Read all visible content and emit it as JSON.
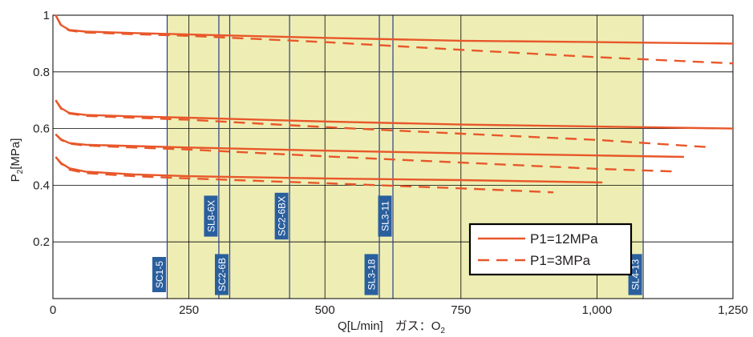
{
  "chart_data": {
    "type": "line",
    "xlabel_main": "Q[L/min]　ガス：O",
    "xlabel_sub": "2",
    "ylabel_main": "P",
    "ylabel_sub": "2",
    "ylabel_unit": "[MPa]",
    "xlim": [
      0,
      1250
    ],
    "ylim": [
      0,
      1.0
    ],
    "x_ticks": [
      0,
      250,
      500,
      750,
      1000,
      1250
    ],
    "x_tick_labels": [
      "0",
      "250",
      "500",
      "750",
      "1,000",
      "1,250"
    ],
    "y_ticks": [
      0.2,
      0.4,
      0.6,
      0.8,
      1.0
    ],
    "y_tick_labels": [
      "0.2",
      "0.4",
      "0.6",
      "0.8",
      "1"
    ],
    "grid": true,
    "shaded_region": {
      "x_start": 210,
      "x_end": 1085,
      "color": "#eeeeb4"
    },
    "regulators": [
      {
        "name": "SC1-5",
        "x": 210,
        "label_pos": "low"
      },
      {
        "name": "SL8-6X",
        "x": 305,
        "label_pos": "high"
      },
      {
        "name": "SC2-6B",
        "x": 325,
        "label_pos": "low"
      },
      {
        "name": "SC2-6BX",
        "x": 435,
        "label_pos": "high"
      },
      {
        "name": "SL3-18",
        "x": 600,
        "label_pos": "low"
      },
      {
        "name": "SL3-11",
        "x": 625,
        "label_pos": "high"
      },
      {
        "name": "SL4-13",
        "x": 1085,
        "label_pos": "low"
      }
    ],
    "legend_position": "lower-right",
    "series": [
      {
        "name": "P1=12MPa",
        "style": "solid",
        "color": "#e8572a",
        "curves": [
          [
            [
              5,
              1.0
            ],
            [
              15,
              0.965
            ],
            [
              30,
              0.948
            ],
            [
              60,
              0.942
            ],
            [
              150,
              0.937
            ],
            [
              250,
              0.932
            ],
            [
              500,
              0.92
            ],
            [
              750,
              0.91
            ],
            [
              1000,
              0.905
            ],
            [
              1250,
              0.9
            ]
          ],
          [
            [
              5,
              0.7
            ],
            [
              15,
              0.672
            ],
            [
              30,
              0.655
            ],
            [
              60,
              0.648
            ],
            [
              150,
              0.643
            ],
            [
              250,
              0.638
            ],
            [
              500,
              0.625
            ],
            [
              750,
              0.614
            ],
            [
              1000,
              0.607
            ],
            [
              1250,
              0.6
            ]
          ],
          [
            [
              5,
              0.58
            ],
            [
              15,
              0.562
            ],
            [
              30,
              0.549
            ],
            [
              60,
              0.543
            ],
            [
              150,
              0.538
            ],
            [
              250,
              0.533
            ],
            [
              500,
              0.522
            ],
            [
              750,
              0.513
            ],
            [
              1000,
              0.505
            ],
            [
              1160,
              0.5
            ]
          ],
          [
            [
              5,
              0.5
            ],
            [
              15,
              0.478
            ],
            [
              30,
              0.46
            ],
            [
              60,
              0.448
            ],
            [
              150,
              0.438
            ],
            [
              250,
              0.432
            ],
            [
              500,
              0.424
            ],
            [
              750,
              0.418
            ],
            [
              1010,
              0.41
            ]
          ]
        ]
      },
      {
        "name": "P1=3MPa",
        "style": "dashed",
        "color": "#e8572a",
        "curves": [
          [
            [
              5,
              1.0
            ],
            [
              15,
              0.963
            ],
            [
              30,
              0.946
            ],
            [
              60,
              0.939
            ],
            [
              150,
              0.933
            ],
            [
              250,
              0.927
            ],
            [
              500,
              0.905
            ],
            [
              750,
              0.878
            ],
            [
              1000,
              0.852
            ],
            [
              1250,
              0.83
            ]
          ],
          [
            [
              5,
              0.7
            ],
            [
              15,
              0.67
            ],
            [
              30,
              0.653
            ],
            [
              60,
              0.645
            ],
            [
              150,
              0.638
            ],
            [
              250,
              0.631
            ],
            [
              500,
              0.605
            ],
            [
              750,
              0.582
            ],
            [
              1000,
              0.56
            ],
            [
              1200,
              0.535
            ]
          ],
          [
            [
              5,
              0.58
            ],
            [
              15,
              0.56
            ],
            [
              30,
              0.547
            ],
            [
              60,
              0.54
            ],
            [
              150,
              0.533
            ],
            [
              250,
              0.526
            ],
            [
              500,
              0.502
            ],
            [
              750,
              0.48
            ],
            [
              1000,
              0.458
            ],
            [
              1150,
              0.448
            ]
          ],
          [
            [
              5,
              0.5
            ],
            [
              15,
              0.476
            ],
            [
              30,
              0.455
            ],
            [
              60,
              0.443
            ],
            [
              150,
              0.432
            ],
            [
              250,
              0.424
            ],
            [
              500,
              0.407
            ],
            [
              750,
              0.389
            ],
            [
              920,
              0.375
            ]
          ]
        ]
      }
    ]
  }
}
